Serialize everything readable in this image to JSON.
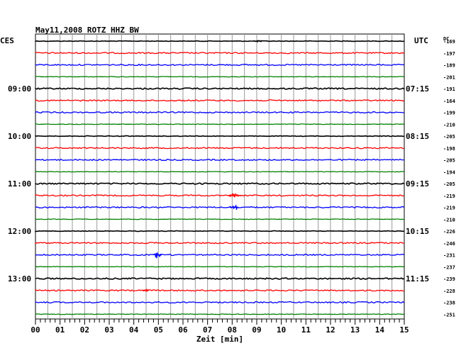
{
  "chart_data": {
    "type": "line",
    "title": "May11,2008   ROTZ HHZ BW",
    "left_label": "CES",
    "right_label": "UTC",
    "dc_label": "DC",
    "xlabel": "Zeit [min]",
    "x_ticks": [
      "00",
      "01",
      "02",
      "03",
      "04",
      "05",
      "06",
      "07",
      "08",
      "09",
      "10",
      "11",
      "12",
      "13",
      "14",
      "15"
    ],
    "xlim": [
      0,
      15
    ],
    "grid": true,
    "row_colors": [
      "#000000",
      "#ff0000",
      "#0000ff",
      "#008000"
    ],
    "left_time_labels": [
      {
        "row": 4,
        "text": "09:00"
      },
      {
        "row": 8,
        "text": "10:00"
      },
      {
        "row": 12,
        "text": "11:00"
      },
      {
        "row": 16,
        "text": "12:00"
      },
      {
        "row": 20,
        "text": "13:00"
      }
    ],
    "right_time_labels": [
      {
        "row": 4,
        "text": "07:15"
      },
      {
        "row": 8,
        "text": "08:15"
      },
      {
        "row": 12,
        "text": "09:15"
      },
      {
        "row": 16,
        "text": "10:15"
      },
      {
        "row": 20,
        "text": "11:15"
      }
    ],
    "dc_offsets": [
      "-169",
      "-197",
      "-189",
      "-201",
      "-191",
      "-164",
      "-199",
      "-210",
      "-205",
      "-198",
      "-205",
      "-194",
      "-205",
      "-219",
      "-219",
      "-210",
      "-226",
      "-246",
      "-231",
      "-237",
      "-239",
      "-228",
      "-238",
      "-251"
    ],
    "events": [
      {
        "row": 0,
        "minute": 9.1,
        "amplitude": 1.5,
        "width": 0.5
      },
      {
        "row": 13,
        "minute": 8.1,
        "amplitude": 3,
        "width": 0.6
      },
      {
        "row": 14,
        "minute": 8.1,
        "amplitude": 7,
        "width": 0.4
      },
      {
        "row": 18,
        "minute": 4.95,
        "amplitude": 6,
        "width": 0.35
      },
      {
        "row": 21,
        "minute": 4.5,
        "amplitude": 1.5,
        "width": 0.3
      }
    ]
  }
}
